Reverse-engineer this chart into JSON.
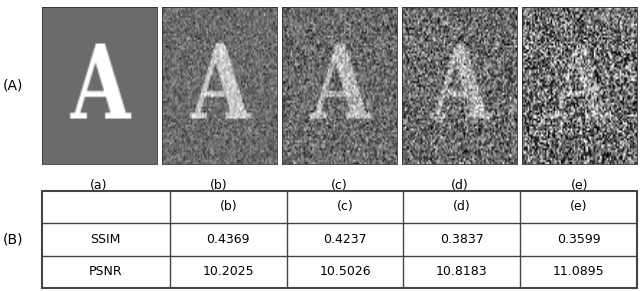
{
  "panel_label_A": "(A)",
  "panel_label_B": "(B)",
  "subcaptions": [
    "(a)",
    "(b)",
    "(c)",
    "(d)",
    "(e)"
  ],
  "table_col_headers": [
    "",
    "(b)",
    "(c)",
    "(d)",
    "(e)"
  ],
  "table_row_labels": [
    "SSIM",
    "PSNR"
  ],
  "table_data": [
    [
      "0.4369",
      "0.4237",
      "0.3837",
      "0.3599"
    ],
    [
      "10.2025",
      "10.5026",
      "10.8183",
      "11.0895"
    ]
  ],
  "bg_color": "#ffffff",
  "figure_width": 6.4,
  "figure_height": 2.91,
  "img_bg_gray": 0.42,
  "img_letter_gray_clean": 0.95,
  "noise_stds": [
    0.0,
    0.1,
    0.14,
    0.2,
    0.3
  ],
  "contrast_factors": [
    1.0,
    0.65,
    0.55,
    0.48,
    0.38
  ],
  "last_img_darker": true
}
